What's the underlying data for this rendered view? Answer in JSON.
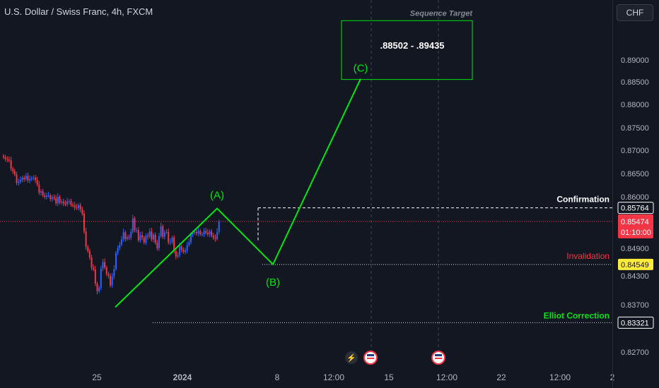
{
  "symbol": {
    "title": "U.S. Dollar / Swiss Franc, 4h, FXCM"
  },
  "currency_button": "CHF",
  "chart_data": {
    "type": "candlestick",
    "symbol": "U.S. Dollar / Swiss Franc",
    "interval": "4h",
    "source": "FXCM",
    "ylim": [
      0.8255,
      0.8955
    ],
    "price_ticks": [
      0.89,
      0.885,
      0.88,
      0.875,
      0.87,
      0.865,
      0.86,
      0.849,
      0.843,
      0.837,
      0.827
    ],
    "price_tick_labels": [
      "0.89000",
      "0.88500",
      "0.88000",
      "0.87500",
      "0.87000",
      "0.86500",
      "0.86000",
      "0.84900",
      "0.84300",
      "0.83700",
      "0.82700"
    ],
    "time_ticks": [
      "25",
      "2024",
      "8",
      "12:00",
      "15",
      "12:00",
      "22",
      "12:00",
      "2"
    ],
    "candles_close": [
      0.8685,
      0.8681,
      0.868,
      0.8678,
      0.866,
      0.8655,
      0.8648,
      0.863,
      0.8632,
      0.8636,
      0.8641,
      0.8638,
      0.8645,
      0.8635,
      0.8638,
      0.864,
      0.8641,
      0.8636,
      0.8626,
      0.8609,
      0.8612,
      0.8603,
      0.86,
      0.8602,
      0.8603,
      0.8595,
      0.8599,
      0.8597,
      0.8586,
      0.86,
      0.8588,
      0.859,
      0.8586,
      0.8584,
      0.859,
      0.8591,
      0.8583,
      0.8582,
      0.8577,
      0.8576,
      0.8582,
      0.8573,
      0.8564,
      0.8526,
      0.8493,
      0.8484,
      0.847,
      0.8448,
      0.8444,
      0.8414,
      0.8398,
      0.8405,
      0.8446,
      0.846,
      0.8448,
      0.8434,
      0.843,
      0.841,
      0.8429,
      0.8445,
      0.848,
      0.8491,
      0.8498,
      0.8509,
      0.8524,
      0.851,
      0.8514,
      0.8513,
      0.8525,
      0.8554,
      0.8529,
      0.8529,
      0.8507,
      0.8518,
      0.8513,
      0.8502,
      0.8517,
      0.8515,
      0.8526,
      0.8509,
      0.8519,
      0.8502,
      0.849,
      0.8516,
      0.8537,
      0.8515,
      0.8524,
      0.8525,
      0.8503,
      0.8503,
      0.8513,
      0.8484,
      0.8472,
      0.8475,
      0.8494,
      0.8487,
      0.8482,
      0.8485,
      0.8497,
      0.8503,
      0.852,
      0.8523,
      0.8525,
      0.8522,
      0.8527,
      0.852,
      0.852,
      0.8527,
      0.8523,
      0.852,
      0.8526,
      0.8517,
      0.8513,
      0.851,
      0.8525,
      0.8547
    ],
    "elliott_wave": {
      "labels": [
        "(A)",
        "(B)",
        "(C)"
      ],
      "points": [
        0.8365,
        0.8575,
        0.8455,
        0.8857
      ]
    },
    "sequence_target": {
      "title": "Sequence Target",
      "range": ".88502 - .89435",
      "low": 0.88502,
      "high": 0.89435
    },
    "levels": [
      {
        "name": "Confirmation",
        "value": 0.85764,
        "label": "0.85764",
        "color": "#ffffff"
      },
      {
        "name": "Invalidation",
        "value": 0.84549,
        "label": "0.84549",
        "color": "#f23645"
      },
      {
        "name": "Elliot Correction",
        "value": 0.83321,
        "label": "0.83321",
        "color": "#00e60e"
      }
    ],
    "last_price": {
      "value": 0.85474,
      "label": "0.85474",
      "countdown": "01:10:00"
    }
  }
}
